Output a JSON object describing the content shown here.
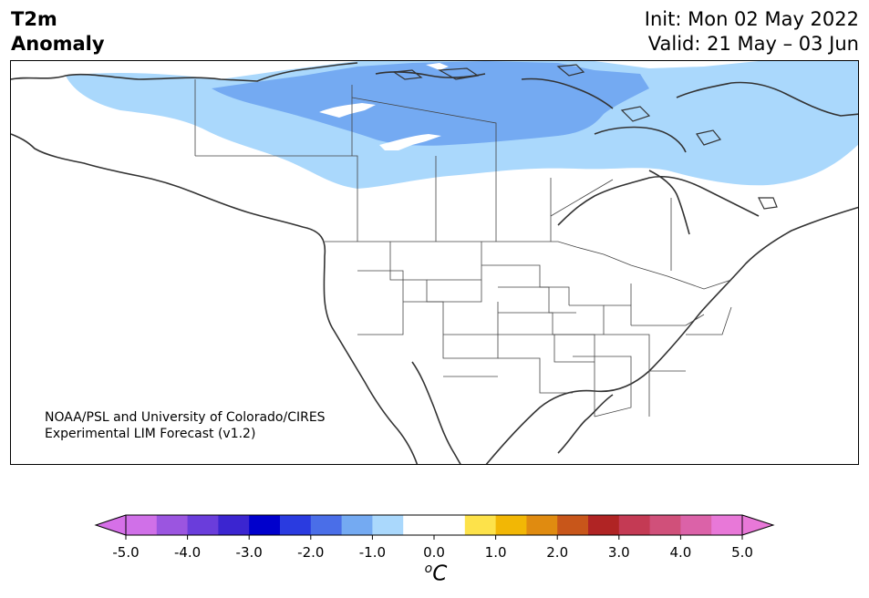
{
  "title": {
    "line1": "T2m",
    "line2": "Anomaly"
  },
  "init": {
    "line1": "Init: Mon 02 May 2022",
    "line2": "Valid: 21 May – 03 Jun"
  },
  "credit": {
    "line1": "NOAA/PSL and University of Colorado/CIRES",
    "line2": "Experimental LIM Forecast (v1.2)"
  },
  "colorbar": {
    "units_sup": "o",
    "units_main": "C",
    "ticks": [
      "-5.0",
      "-4.0",
      "-3.0",
      "-2.0",
      "-1.0",
      "0.0",
      "1.0",
      "2.0",
      "3.0",
      "4.0",
      "5.0"
    ],
    "colors": [
      "#d070e8",
      "#9b55e0",
      "#6a3ddb",
      "#3b25d0",
      "#0000cc",
      "#2a3be0",
      "#4a6ee8",
      "#74aaf2",
      "#aad8fc",
      "#ffffff",
      "#ffffff",
      "#fde24a",
      "#f2b705",
      "#e08b10",
      "#c8561a",
      "#b02424",
      "#c43a54",
      "#d0507a",
      "#db62a8",
      "#e878d8"
    ],
    "left_extend_color": "#d670e8",
    "right_extend_color": "#e878d8"
  },
  "map": {
    "region": "North America",
    "field": "2m temperature anomaly",
    "anomaly_colors": {
      "light_blue": "#aad8fc",
      "mid_blue": "#74aaf2"
    }
  }
}
